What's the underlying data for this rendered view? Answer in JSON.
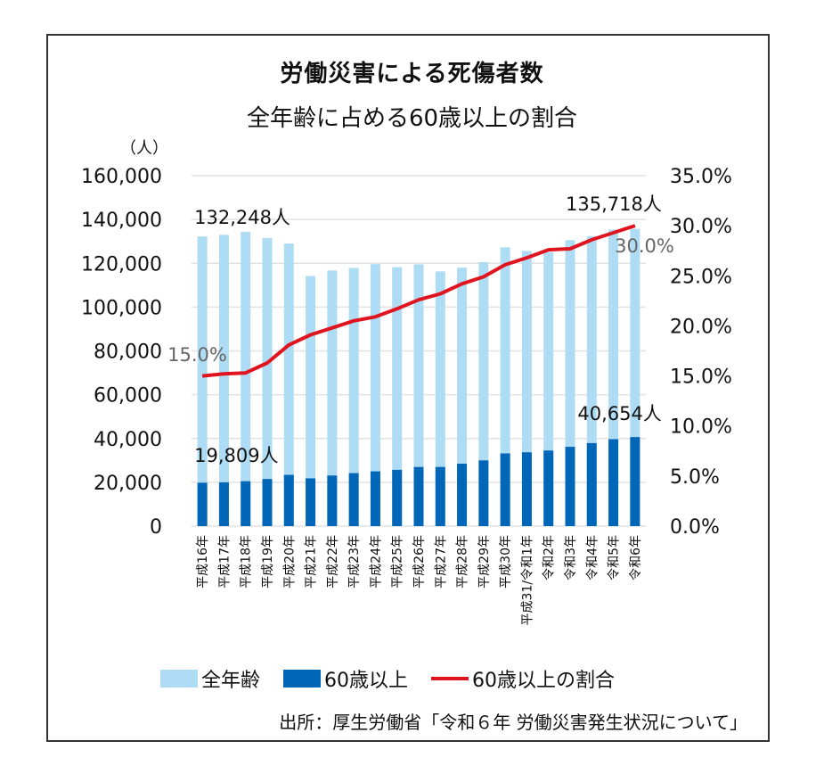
{
  "header": {
    "title": "労働災害による死傷者数",
    "subtitle": "全年齢に占める60歳以上の割合"
  },
  "legend": [
    {
      "label": "全年齢",
      "kind": "bar",
      "color": "#aedcf4"
    },
    {
      "label": "60歳以上",
      "kind": "bar",
      "color": "#0066b8"
    },
    {
      "label": "60歳以上の割合",
      "kind": "line",
      "color": "#e0141e"
    }
  ],
  "source": "出所：厚生労働省「令和６年 労働災害発生状況について」",
  "chart_data": {
    "type": "bar",
    "title": "労働災害による死傷者数 全年齢に占める60歳以上の割合",
    "ylabel": "（人）",
    "y2label": "",
    "ylim": [
      0,
      160000
    ],
    "y2lim": [
      0,
      35
    ],
    "yticks": [
      "0",
      "20,000",
      "40,000",
      "60,000",
      "80,000",
      "100,000",
      "120,000",
      "140,000",
      "160,000"
    ],
    "y2ticks": [
      "0.0%",
      "5.0%",
      "10.0%",
      "15.0%",
      "20.0%",
      "25.0%",
      "30.0%",
      "35.0%"
    ],
    "grid": true,
    "legend_position": "bottom",
    "categories": [
      "平成16年",
      "平成17年",
      "平成18年",
      "平成19年",
      "平成20年",
      "平成21年",
      "平成22年",
      "平成23年",
      "平成24年",
      "平成25年",
      "平成26年",
      "平成27年",
      "平成28年",
      "平成29年",
      "平成30年",
      "平成31/令和1年",
      "令和2年",
      "令和3年",
      "令和4年",
      "令和5年",
      "令和6年"
    ],
    "series": [
      {
        "name": "全年齢",
        "type": "bar",
        "axis": "left",
        "color": "#aedcf4",
        "values": [
          132248,
          133000,
          134300,
          131500,
          129000,
          114200,
          116700,
          117900,
          119600,
          118200,
          119500,
          116300,
          118000,
          120500,
          127300,
          125600,
          125100,
          130600,
          132400,
          135400,
          135718
        ]
      },
      {
        "name": "60歳以上",
        "type": "bar",
        "axis": "left",
        "color": "#0066b8",
        "values": [
          19809,
          20000,
          20500,
          21500,
          23400,
          21800,
          23100,
          24200,
          25000,
          25700,
          27000,
          27000,
          28500,
          30000,
          33200,
          33700,
          34500,
          36200,
          37900,
          39700,
          40654
        ]
      },
      {
        "name": "60歳以上の割合",
        "type": "line",
        "axis": "right",
        "color": "#e0141e",
        "values": [
          15.0,
          15.2,
          15.3,
          16.3,
          18.1,
          19.1,
          19.8,
          20.5,
          20.9,
          21.7,
          22.6,
          23.2,
          24.2,
          24.9,
          26.1,
          26.8,
          27.6,
          27.7,
          28.6,
          29.3,
          30.0
        ]
      }
    ],
    "annotations": [
      {
        "text": "132,248人",
        "series": "全年齢",
        "index": 0
      },
      {
        "text": "135,718人",
        "series": "全年齢",
        "index": 20
      },
      {
        "text": "19,809人",
        "series": "60歳以上",
        "index": 0
      },
      {
        "text": "40,654人",
        "series": "60歳以上",
        "index": 20
      },
      {
        "text": "15.0%",
        "series": "60歳以上の割合",
        "index": 0
      },
      {
        "text": "30.0%",
        "series": "60歳以上の割合",
        "index": 20
      }
    ]
  }
}
